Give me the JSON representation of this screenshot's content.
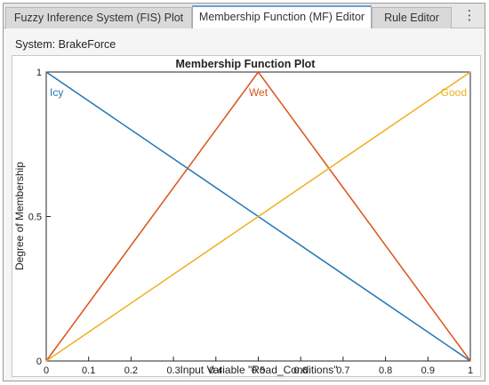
{
  "tabs": [
    {
      "label": "Fuzzy Inference System (FIS) Plot",
      "active": false
    },
    {
      "label": "Membership Function (MF) Editor",
      "active": true
    },
    {
      "label": "Rule Editor",
      "active": false
    }
  ],
  "tab_more_icon": "⋮",
  "system": {
    "label": "System: BrakeForce"
  },
  "chart_data": {
    "type": "line",
    "title": "Membership Function Plot",
    "xlabel": "Input Variable \"Road_Conditions\"",
    "ylabel": "Degree of Membership",
    "xlim": [
      0,
      1
    ],
    "ylim": [
      0,
      1
    ],
    "x_ticks": [
      "0",
      "0.1",
      "0.2",
      "0.3",
      "0.4",
      "0.5",
      "0.6",
      "0.7",
      "0.8",
      "0.9",
      "1"
    ],
    "y_ticks": [
      "0",
      "0.5",
      "1"
    ],
    "grid": false,
    "series": [
      {
        "name": "Icy",
        "color": "#1f77b4",
        "x": [
          0,
          1
        ],
        "y": [
          1,
          0
        ],
        "label_x": 0
      },
      {
        "name": "Wet",
        "color": "#d95319",
        "x": [
          0,
          0.5,
          1
        ],
        "y": [
          0,
          1,
          0
        ],
        "label_x": 0.5
      },
      {
        "name": "Good",
        "color": "#edb120",
        "x": [
          0,
          1
        ],
        "y": [
          0,
          1
        ],
        "label_x": 1
      }
    ]
  }
}
